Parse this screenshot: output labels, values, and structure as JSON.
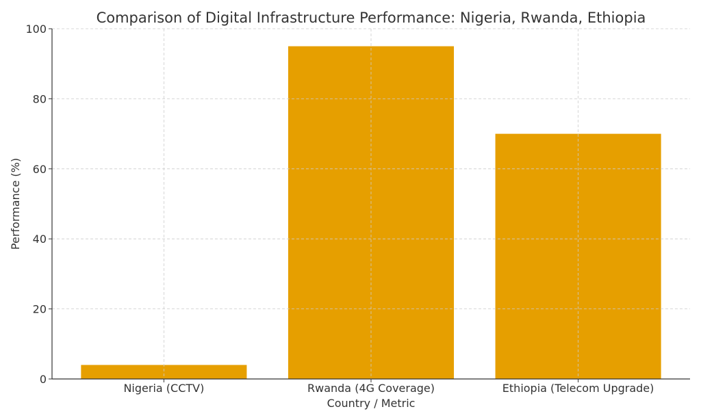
{
  "chart_data": {
    "type": "bar",
    "title": "Comparison of Digital Infrastructure Performance: Nigeria, Rwanda, Ethiopia",
    "xlabel": "Country / Metric",
    "ylabel": "Performance (%)",
    "categories": [
      "Nigeria (CCTV)",
      "Rwanda (4G Coverage)",
      "Ethiopia (Telecom Upgrade)"
    ],
    "values": [
      4,
      95,
      70
    ],
    "ylim": [
      0,
      100
    ],
    "yticks": [
      0,
      20,
      40,
      60,
      80,
      100
    ],
    "grid": true,
    "bar_color": "#E69F00"
  }
}
